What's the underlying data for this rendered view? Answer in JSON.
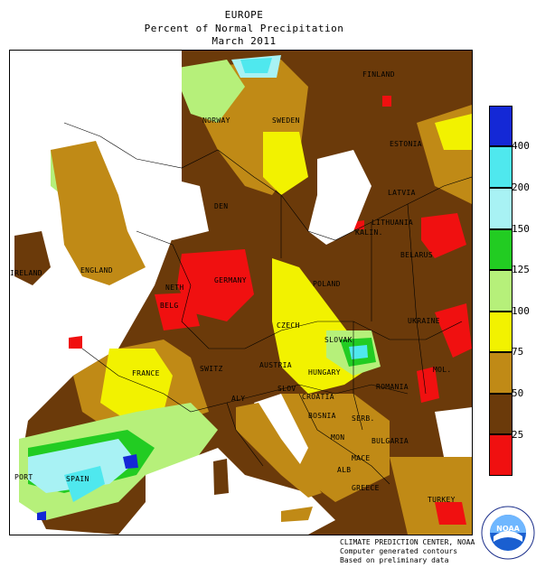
{
  "header": {
    "region": "EUROPE",
    "product": "Percent of Normal Precipitation",
    "period": "March 2011"
  },
  "legend": {
    "breaks": [
      {
        "label": "400",
        "color": "#1428d6"
      },
      {
        "label": "200",
        "color": "#4fe8ee"
      },
      {
        "label": "150",
        "color": "#a8f2f4"
      },
      {
        "label": "125",
        "color": "#22cc22"
      },
      {
        "label": "100",
        "color": "#b6f07a"
      },
      {
        "label": "75",
        "color": "#f2f200"
      },
      {
        "label": "50",
        "color": "#c08a16"
      },
      {
        "label": "25",
        "color": "#6b3a0a"
      },
      {
        "label": "",
        "color": "#f01010"
      }
    ]
  },
  "map_labels": {
    "finland": "FINLAND",
    "norway": "NORWAY",
    "sweden": "SWEDEN",
    "estonia": "ESTONIA",
    "latvia": "LATVIA",
    "lithuania": "LITHUANIA",
    "den": "DEN",
    "kalin": "KALIN.",
    "belarus": "BELARUS",
    "ireland": "IRELAND",
    "england": "ENGLAND",
    "germany": "GERMANY",
    "poland": "POLAND",
    "neth": "NETH",
    "belg": "BELG",
    "czech": "CZECH",
    "slovak": "SLOVAK",
    "ukraine": "UKRAINE",
    "france": "FRANCE",
    "switz": "SWITZ",
    "austria": "AUSTRIA",
    "hungary": "HUNGARY",
    "mol": "MOL.",
    "romania": "ROMANIA",
    "slov": "SLOV",
    "croatia": "CROATIA",
    "italy": "ALY",
    "bosnia": "BOSNIA",
    "serb": "SERB.",
    "mon": "MON",
    "bulgaria": "BULGARIA",
    "alb": "ALB",
    "mace": "MACE",
    "greece": "GREECE",
    "turkey": "TURKEY",
    "port": "PORT",
    "spain": "SPAIN"
  },
  "footer": {
    "line1": "CLIMATE PREDICTION CENTER, NOAA",
    "line2": "Computer generated contours",
    "line3": "Based on preliminary data"
  },
  "logo": {
    "text": "NOAA",
    "ring_text": "NATIONAL OCEANIC AND ATMOSPHERIC ADMINISTRATION · U.S. DEPARTMENT OF COMMERCE"
  }
}
